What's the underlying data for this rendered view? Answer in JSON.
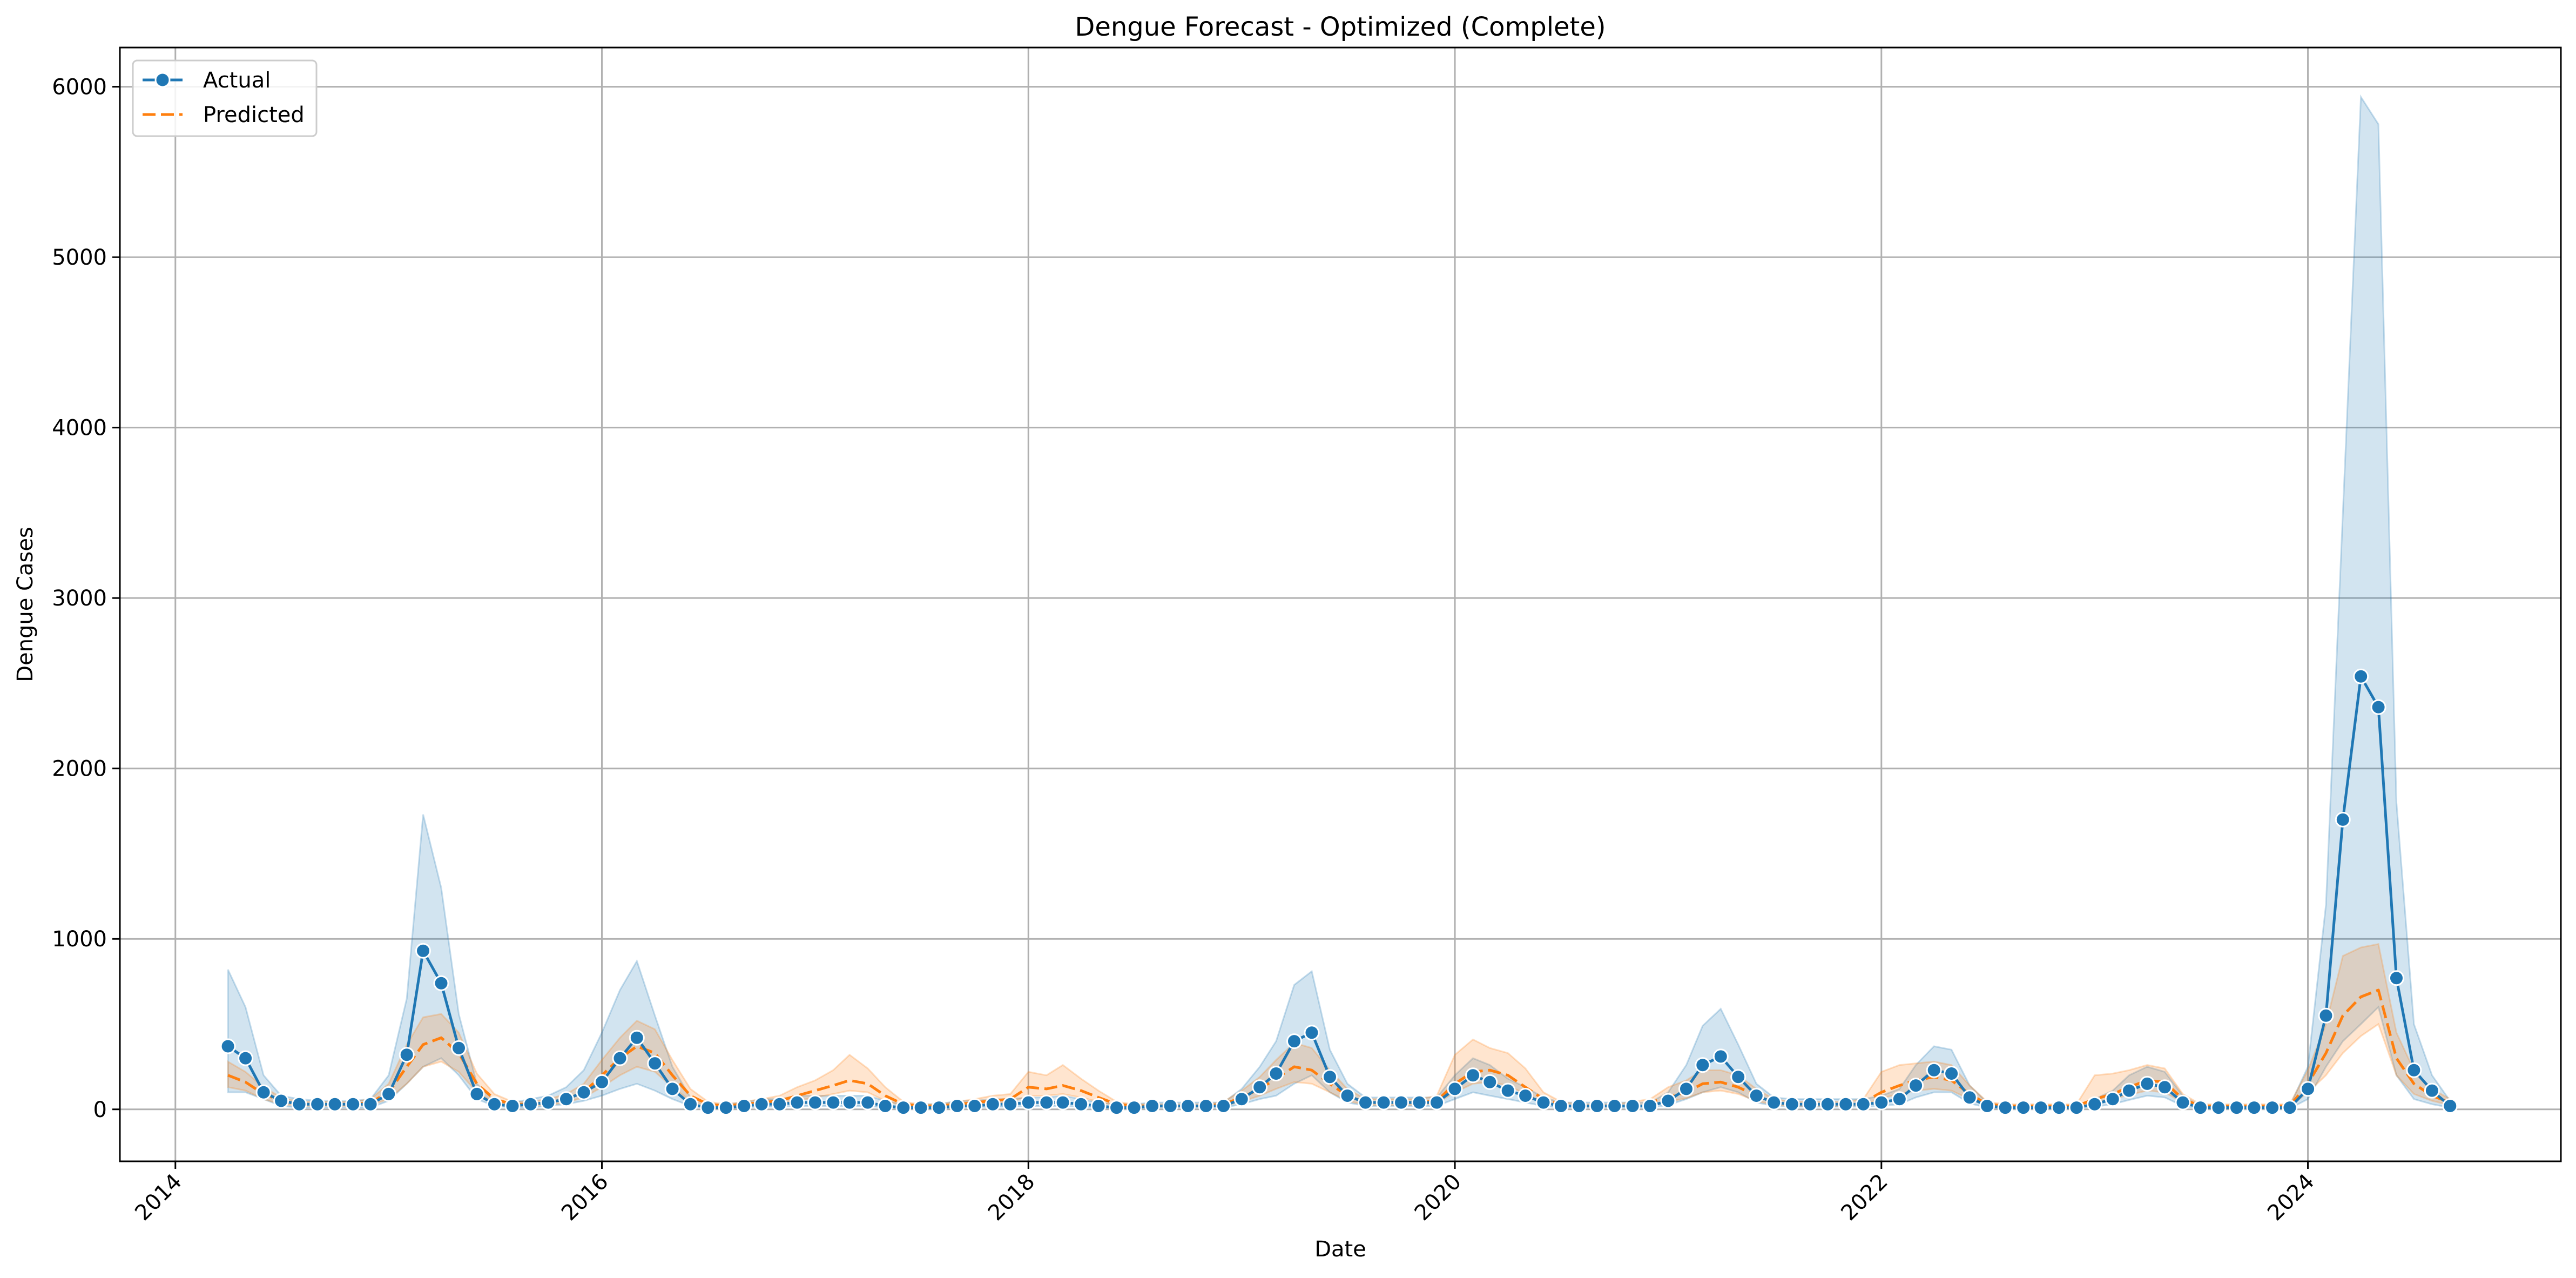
{
  "chart_data": {
    "type": "line",
    "title": "Dengue Forecast - Optimized (Complete)",
    "xlabel": "Date",
    "ylabel": "Dengue Cases",
    "xlim": [
      "2013-09-28",
      "2025-03-10"
    ],
    "ylim": [
      -305,
      6230
    ],
    "x_ticks": [
      "2014",
      "2016",
      "2018",
      "2020",
      "2022",
      "2024"
    ],
    "y_ticks": [
      0,
      1000,
      2000,
      3000,
      4000,
      5000,
      6000
    ],
    "grid": true,
    "legend": {
      "placement": "top-left",
      "entries": [
        "Actual",
        "Predicted"
      ]
    },
    "colors": {
      "actual": "#1f77b4",
      "predicted": "#ff7f0e"
    },
    "dates": [
      "2014-04",
      "2014-05",
      "2014-06",
      "2014-07",
      "2014-08",
      "2014-09",
      "2014-10",
      "2014-11",
      "2014-12",
      "2015-01",
      "2015-02",
      "2015-03",
      "2015-04",
      "2015-05",
      "2015-06",
      "2015-07",
      "2015-08",
      "2015-09",
      "2015-10",
      "2015-11",
      "2015-12",
      "2016-01",
      "2016-02",
      "2016-03",
      "2016-04",
      "2016-05",
      "2016-06",
      "2016-07",
      "2016-08",
      "2016-09",
      "2016-10",
      "2016-11",
      "2016-12",
      "2017-01",
      "2017-02",
      "2017-03",
      "2017-04",
      "2017-05",
      "2017-06",
      "2017-07",
      "2017-08",
      "2017-09",
      "2017-10",
      "2017-11",
      "2017-12",
      "2018-01",
      "2018-02",
      "2018-03",
      "2018-04",
      "2018-05",
      "2018-06",
      "2018-07",
      "2018-08",
      "2018-09",
      "2018-10",
      "2018-11",
      "2018-12",
      "2019-01",
      "2019-02",
      "2019-03",
      "2019-04",
      "2019-05",
      "2019-06",
      "2019-07",
      "2019-08",
      "2019-09",
      "2019-10",
      "2019-11",
      "2019-12",
      "2020-01",
      "2020-02",
      "2020-03",
      "2020-04",
      "2020-05",
      "2020-06",
      "2020-07",
      "2020-08",
      "2020-09",
      "2020-10",
      "2020-11",
      "2020-12",
      "2021-01",
      "2021-02",
      "2021-03",
      "2021-04",
      "2021-05",
      "2021-06",
      "2021-07",
      "2021-08",
      "2021-09",
      "2021-10",
      "2021-11",
      "2021-12",
      "2022-01",
      "2022-02",
      "2022-03",
      "2022-04",
      "2022-05",
      "2022-06",
      "2022-07",
      "2022-08",
      "2022-09",
      "2022-10",
      "2022-11",
      "2022-12",
      "2023-01",
      "2023-02",
      "2023-03",
      "2023-04",
      "2023-05",
      "2023-06",
      "2023-07",
      "2023-08",
      "2023-09",
      "2023-10",
      "2023-11",
      "2023-12",
      "2024-01",
      "2024-02",
      "2024-03",
      "2024-04",
      "2024-05",
      "2024-06",
      "2024-07",
      "2024-08",
      "2024-09"
    ],
    "series": [
      {
        "name": "Actual",
        "values": [
          370,
          300,
          100,
          50,
          30,
          30,
          30,
          30,
          30,
          90,
          320,
          930,
          740,
          360,
          90,
          30,
          20,
          30,
          40,
          60,
          100,
          160,
          300,
          420,
          270,
          120,
          30,
          10,
          10,
          20,
          30,
          30,
          40,
          40,
          40,
          40,
          40,
          20,
          10,
          10,
          10,
          20,
          20,
          30,
          30,
          40,
          40,
          40,
          30,
          20,
          10,
          10,
          20,
          20,
          20,
          20,
          20,
          60,
          130,
          210,
          400,
          450,
          190,
          80,
          40,
          40,
          40,
          40,
          40,
          120,
          200,
          160,
          110,
          80,
          40,
          20,
          20,
          20,
          20,
          20,
          20,
          50,
          120,
          260,
          310,
          190,
          80,
          40,
          30,
          30,
          30,
          30,
          30,
          40,
          60,
          140,
          230,
          210,
          70,
          20,
          10,
          10,
          10,
          10,
          10,
          30,
          60,
          110,
          150,
          130,
          40,
          10,
          10,
          10,
          10,
          10,
          10,
          120,
          550,
          1700,
          2540,
          2360,
          770,
          230,
          110,
          20
        ],
        "lower": [
          100,
          100,
          60,
          20,
          10,
          10,
          10,
          10,
          10,
          50,
          150,
          250,
          300,
          200,
          60,
          20,
          10,
          10,
          20,
          30,
          50,
          80,
          120,
          150,
          110,
          60,
          20,
          5,
          5,
          10,
          15,
          15,
          20,
          20,
          20,
          20,
          20,
          10,
          5,
          5,
          5,
          10,
          10,
          15,
          15,
          20,
          20,
          20,
          15,
          10,
          5,
          5,
          10,
          10,
          10,
          10,
          10,
          30,
          60,
          80,
          150,
          200,
          100,
          40,
          20,
          20,
          20,
          20,
          20,
          60,
          100,
          80,
          60,
          40,
          20,
          10,
          10,
          10,
          10,
          10,
          10,
          25,
          60,
          100,
          130,
          100,
          40,
          20,
          15,
          15,
          15,
          15,
          15,
          20,
          30,
          70,
          100,
          100,
          35,
          10,
          5,
          5,
          5,
          5,
          5,
          15,
          30,
          55,
          80,
          70,
          20,
          5,
          5,
          5,
          5,
          5,
          5,
          60,
          250,
          400,
          500,
          600,
          200,
          60,
          30,
          10
        ],
        "upper": [
          820,
          600,
          200,
          80,
          60,
          50,
          50,
          50,
          60,
          200,
          650,
          1730,
          1300,
          560,
          150,
          50,
          40,
          60,
          80,
          130,
          230,
          450,
          700,
          870,
          550,
          250,
          70,
          30,
          30,
          40,
          60,
          60,
          80,
          80,
          80,
          80,
          80,
          50,
          30,
          30,
          30,
          50,
          50,
          60,
          60,
          70,
          70,
          80,
          60,
          40,
          30,
          30,
          40,
          40,
          40,
          40,
          40,
          120,
          250,
          400,
          730,
          810,
          350,
          150,
          70,
          70,
          70,
          70,
          70,
          200,
          300,
          260,
          180,
          130,
          70,
          40,
          40,
          40,
          40,
          40,
          40,
          100,
          260,
          490,
          590,
          380,
          150,
          70,
          60,
          60,
          60,
          60,
          60,
          80,
          120,
          260,
          370,
          350,
          140,
          40,
          20,
          20,
          20,
          20,
          20,
          60,
          110,
          200,
          250,
          220,
          80,
          20,
          20,
          20,
          20,
          20,
          20,
          250,
          1200,
          3500,
          5940,
          5780,
          1800,
          500,
          200,
          50
        ]
      },
      {
        "name": "Predicted",
        "values": [
          200,
          160,
          90,
          50,
          30,
          30,
          30,
          30,
          40,
          100,
          250,
          380,
          420,
          330,
          150,
          60,
          30,
          30,
          40,
          60,
          100,
          200,
          300,
          370,
          330,
          200,
          80,
          30,
          20,
          30,
          40,
          50,
          80,
          110,
          140,
          170,
          150,
          80,
          30,
          20,
          20,
          30,
          40,
          50,
          60,
          130,
          120,
          140,
          110,
          70,
          30,
          20,
          20,
          20,
          20,
          20,
          30,
          70,
          120,
          180,
          250,
          230,
          150,
          80,
          40,
          40,
          40,
          40,
          50,
          150,
          220,
          230,
          200,
          130,
          60,
          30,
          20,
          20,
          20,
          30,
          40,
          70,
          100,
          150,
          160,
          130,
          80,
          40,
          30,
          30,
          30,
          30,
          40,
          100,
          140,
          170,
          190,
          170,
          90,
          30,
          20,
          20,
          20,
          20,
          20,
          60,
          90,
          130,
          170,
          160,
          60,
          20,
          20,
          20,
          20,
          20,
          20,
          150,
          330,
          550,
          660,
          700,
          300,
          150,
          80,
          40
        ],
        "lower": [
          130,
          110,
          60,
          30,
          20,
          20,
          20,
          20,
          25,
          60,
          150,
          250,
          280,
          220,
          100,
          40,
          20,
          20,
          25,
          40,
          70,
          130,
          200,
          250,
          220,
          130,
          50,
          20,
          15,
          20,
          25,
          35,
          50,
          70,
          90,
          110,
          100,
          50,
          20,
          15,
          15,
          20,
          25,
          35,
          40,
          80,
          80,
          90,
          70,
          45,
          20,
          15,
          15,
          15,
          15,
          15,
          20,
          45,
          80,
          120,
          160,
          150,
          100,
          50,
          25,
          25,
          25,
          25,
          35,
          100,
          150,
          160,
          140,
          90,
          40,
          20,
          15,
          15,
          15,
          20,
          25,
          45,
          65,
          100,
          110,
          90,
          50,
          25,
          20,
          20,
          20,
          20,
          25,
          65,
          90,
          110,
          120,
          110,
          60,
          20,
          15,
          15,
          15,
          15,
          15,
          40,
          60,
          85,
          110,
          100,
          40,
          15,
          15,
          15,
          15,
          15,
          15,
          100,
          200,
          330,
          430,
          500,
          200,
          90,
          50,
          25
        ],
        "upper": [
          280,
          220,
          130,
          70,
          45,
          45,
          45,
          45,
          60,
          150,
          380,
          540,
          560,
          450,
          210,
          90,
          45,
          45,
          60,
          90,
          150,
          290,
          420,
          520,
          470,
          290,
          120,
          45,
          30,
          45,
          60,
          80,
          130,
          170,
          230,
          320,
          240,
          130,
          45,
          30,
          30,
          45,
          60,
          80,
          90,
          220,
          200,
          260,
          180,
          110,
          45,
          30,
          30,
          30,
          30,
          30,
          45,
          110,
          190,
          290,
          390,
          360,
          230,
          120,
          60,
          60,
          60,
          60,
          80,
          320,
          410,
          360,
          330,
          240,
          100,
          45,
          30,
          30,
          30,
          45,
          60,
          130,
          170,
          230,
          230,
          200,
          120,
          60,
          45,
          45,
          45,
          45,
          60,
          220,
          260,
          270,
          280,
          260,
          140,
          45,
          30,
          30,
          30,
          30,
          30,
          200,
          210,
          230,
          260,
          240,
          90,
          30,
          30,
          30,
          30,
          30,
          30,
          230,
          500,
          900,
          950,
          970,
          450,
          230,
          120,
          60
        ]
      }
    ]
  }
}
